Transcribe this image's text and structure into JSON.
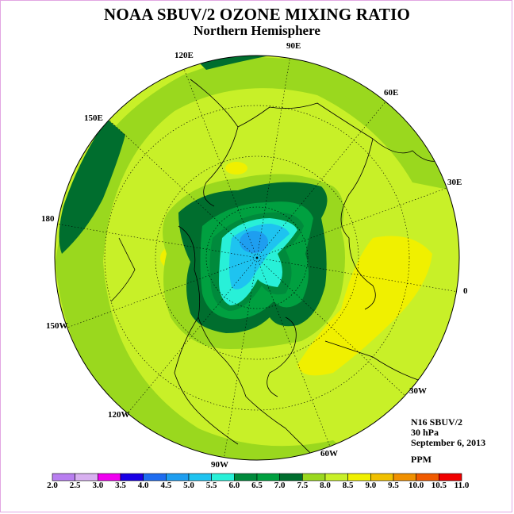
{
  "title": "NOAA SBUV/2 OZONE MIXING RATIO",
  "subtitle": "Northern Hemisphere",
  "info": {
    "satellite": "N16 SBUV/2",
    "level": "30 hPa",
    "date": "September 6, 2013",
    "units": "PPM"
  },
  "longitude_labels": [
    "90E",
    "60E",
    "30E",
    "0",
    "30W",
    "60W",
    "90W",
    "120W",
    "150W",
    "180",
    "150E",
    "120E"
  ],
  "colorbar": {
    "ticks": [
      "2.0",
      "2.5",
      "3.0",
      "3.5",
      "4.0",
      "4.5",
      "5.0",
      "5.5",
      "6.0",
      "6.5",
      "7.0",
      "7.5",
      "8.0",
      "8.5",
      "9.0",
      "9.5",
      "10.0",
      "10.5",
      "11.0"
    ],
    "colors": [
      "#b87ef0",
      "#d8b0f0",
      "#f000f0",
      "#1a00e6",
      "#1e6cf0",
      "#1e9ef0",
      "#1ec3f0",
      "#28f0d8",
      "#008a3c",
      "#00a040",
      "#006e2e",
      "#9ad81e",
      "#c8f028",
      "#f0f000",
      "#f0c000",
      "#f09000",
      "#f05a00",
      "#f00000",
      "#8a4a2e"
    ]
  }
}
